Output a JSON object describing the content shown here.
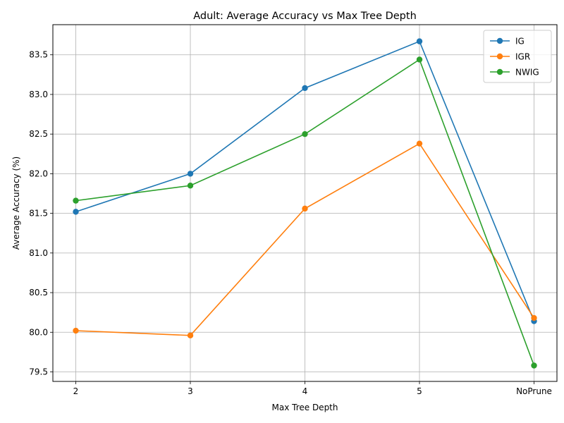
{
  "chart_data": {
    "type": "line",
    "title": "Adult: Average Accuracy vs Max Tree Depth",
    "xlabel": "Max Tree Depth",
    "ylabel": "Average Accuracy (%)",
    "categories": [
      "2",
      "3",
      "4",
      "5",
      "NoPrune"
    ],
    "ylim": [
      79.38,
      83.88
    ],
    "yticks": [
      79.5,
      80.0,
      80.5,
      81.0,
      81.5,
      82.0,
      82.5,
      83.0,
      83.5
    ],
    "ytick_labels": [
      "79.5",
      "80.0",
      "80.5",
      "81.0",
      "81.5",
      "82.0",
      "82.5",
      "83.0",
      "83.5"
    ],
    "grid": true,
    "legend_position": "top-right",
    "series": [
      {
        "name": "IG",
        "color": "#1f77b4",
        "values": [
          81.52,
          82.0,
          83.08,
          83.67,
          80.14
        ]
      },
      {
        "name": "IGR",
        "color": "#ff7f0e",
        "values": [
          80.02,
          79.96,
          81.56,
          82.38,
          80.18
        ]
      },
      {
        "name": "NWIG",
        "color": "#2ca02c",
        "values": [
          81.66,
          81.85,
          82.5,
          83.44,
          79.58
        ]
      }
    ]
  }
}
